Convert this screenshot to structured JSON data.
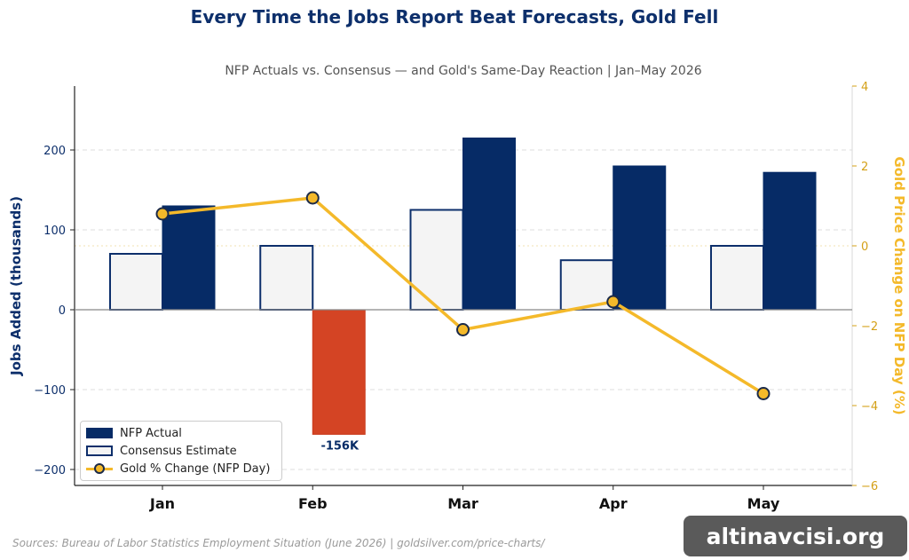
{
  "chart_data": {
    "type": "bar",
    "title": "Every Time the Jobs Report Beat Forecasts, Gold Fell",
    "subtitle": "NFP Actuals vs. Consensus — and Gold's Same-Day Reaction | Jan–May 2026",
    "categories": [
      "Jan",
      "Feb",
      "Mar",
      "Apr",
      "May"
    ],
    "series": [
      {
        "name": "Consensus Estimate",
        "values": [
          70,
          80,
          125,
          62,
          80
        ],
        "axis": "left",
        "kind": "bar"
      },
      {
        "name": "NFP Actual",
        "values": [
          130,
          -156,
          215,
          180,
          172
        ],
        "axis": "left",
        "kind": "bar"
      },
      {
        "name": "Gold % Change (NFP Day)",
        "values": [
          0.8,
          1.2,
          -2.1,
          -1.4,
          -3.7
        ],
        "axis": "right",
        "kind": "line"
      }
    ],
    "ylabel": "Jobs Added (thousands)",
    "ylabel_right": "Gold Price Change on NFP Day (%)",
    "ylim": [
      -220,
      280
    ],
    "ylim_right": [
      -6,
      4
    ],
    "yticks": [
      {
        "v": -200,
        "label": "−200"
      },
      {
        "v": -100,
        "label": "−100"
      },
      {
        "v": 0,
        "label": "0"
      },
      {
        "v": 100,
        "label": "100"
      },
      {
        "v": 200,
        "label": "200"
      }
    ],
    "yticks_right": [
      {
        "v": -6,
        "label": "−6"
      },
      {
        "v": -4,
        "label": "−4"
      },
      {
        "v": -2,
        "label": "−2"
      },
      {
        "v": 0,
        "label": "0"
      },
      {
        "v": 2,
        "label": "2"
      },
      {
        "v": 4,
        "label": "4"
      }
    ],
    "annotation": {
      "category": "Feb",
      "value": -156,
      "text": "-156K"
    },
    "legend": {
      "placement": "lower-left"
    },
    "grid": true,
    "colors": {
      "actual": "#062b66",
      "negative": "#d44424",
      "consensus_fill": "#f4f4f4",
      "consensus_edge": "#0d2f6b",
      "gold": "#f4b92a",
      "left_axis_text": "#0d2f6b",
      "right_axis_text": "#d4a017",
      "title": "#0d2f6b"
    }
  },
  "source": "Sources: Bureau of Labor Statistics Employment Situation (June 2026) | goldsilver.com/price-charts/",
  "watermark": "altinavcisi.org"
}
